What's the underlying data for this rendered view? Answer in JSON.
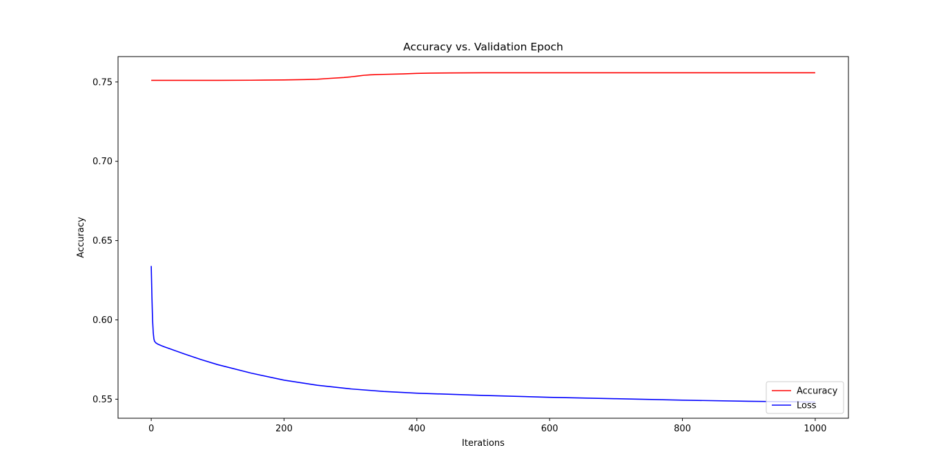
{
  "chart_data": {
    "type": "line",
    "title": "Accuracy vs. Validation Epoch",
    "xlabel": "Iterations",
    "ylabel": "Accuracy",
    "xlim": [
      -50,
      1050
    ],
    "ylim": [
      0.538,
      0.766
    ],
    "xticks": [
      0,
      200,
      400,
      600,
      800,
      1000
    ],
    "xtick_labels": [
      "0",
      "200",
      "400",
      "600",
      "800",
      "1000"
    ],
    "yticks": [
      0.55,
      0.6,
      0.65,
      0.7,
      0.75
    ],
    "ytick_labels": [
      "0.55",
      "0.60",
      "0.65",
      "0.70",
      "0.75"
    ],
    "grid": false,
    "legend_position": "lower-right",
    "series": [
      {
        "name": "Accuracy",
        "color": "#ff0000",
        "x": [
          0,
          50,
          100,
          150,
          200,
          230,
          250,
          270,
          290,
          300,
          310,
          320,
          330,
          350,
          380,
          400,
          420,
          450,
          500,
          600,
          700,
          800,
          900,
          1000
        ],
        "y": [
          0.751,
          0.751,
          0.751,
          0.7511,
          0.7513,
          0.7515,
          0.7517,
          0.7523,
          0.7528,
          0.7532,
          0.7537,
          0.7542,
          0.7545,
          0.7548,
          0.7551,
          0.7554,
          0.7556,
          0.7557,
          0.7558,
          0.7558,
          0.7558,
          0.7558,
          0.7558,
          0.7558
        ]
      },
      {
        "name": "Loss",
        "color": "#0000ff",
        "x": [
          0,
          1,
          2,
          3,
          4,
          5,
          7,
          10,
          15,
          20,
          30,
          50,
          75,
          100,
          150,
          200,
          250,
          300,
          350,
          400,
          500,
          600,
          700,
          800,
          900,
          1000
        ],
        "y": [
          0.634,
          0.615,
          0.6,
          0.592,
          0.588,
          0.5865,
          0.5855,
          0.5847,
          0.5838,
          0.583,
          0.5815,
          0.5785,
          0.575,
          0.5718,
          0.5665,
          0.562,
          0.5588,
          0.5565,
          0.5549,
          0.5538,
          0.5524,
          0.5512,
          0.5503,
          0.5494,
          0.5487,
          0.5482
        ]
      }
    ]
  }
}
